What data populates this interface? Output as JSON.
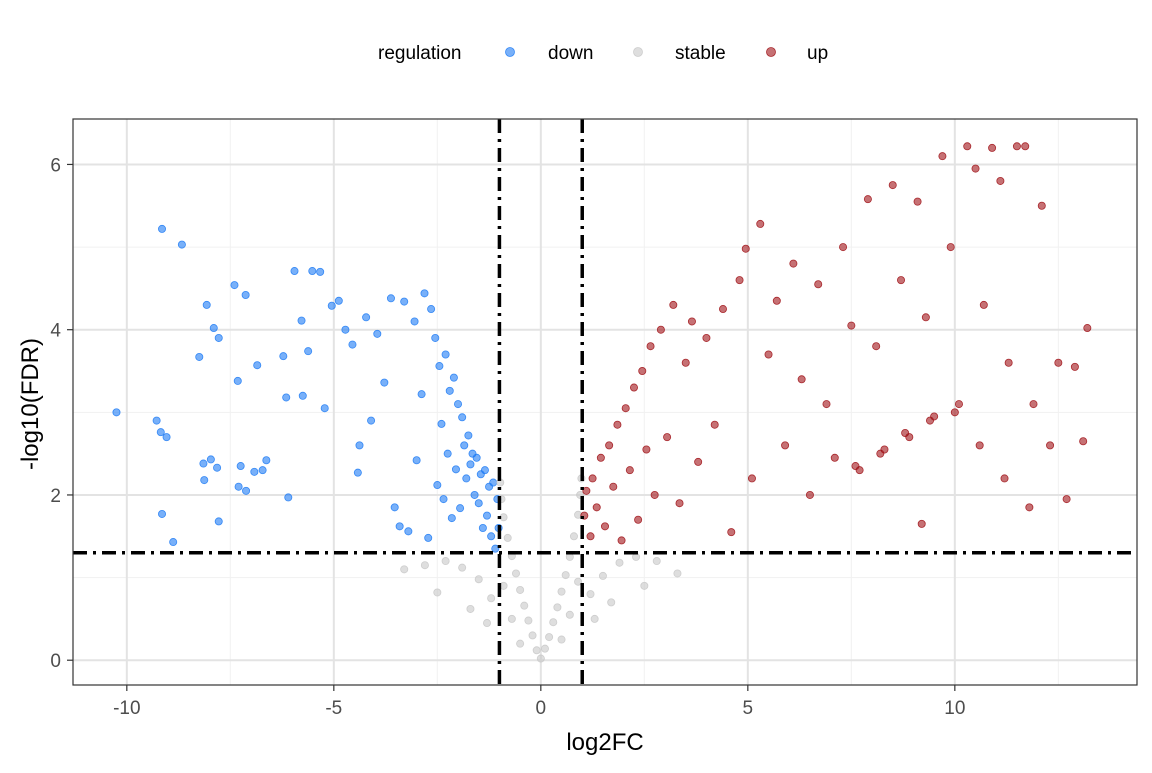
{
  "chart_data": {
    "type": "scatter",
    "xlabel": "log2FC",
    "ylabel": "-log10(FDR)",
    "xlim": [
      -11.3,
      14.4
    ],
    "ylim": [
      -0.3,
      6.55
    ],
    "x_ticks": [
      -10,
      -5,
      0,
      5,
      10
    ],
    "y_ticks": [
      0,
      2,
      4,
      6
    ],
    "x_tick_labels": [
      "-10",
      "-5",
      "0",
      "5",
      "10"
    ],
    "y_tick_labels": [
      "0",
      "2",
      "4",
      "6"
    ],
    "grid": true,
    "legend_position": "top",
    "legend": {
      "title": "regulation",
      "entries": [
        {
          "label": "down",
          "color": "#1E7BF5"
        },
        {
          "label": "stable",
          "color": "#C8C8C8"
        },
        {
          "label": "up",
          "color": "#A01218"
        }
      ]
    },
    "thresholds": {
      "log2FC": [
        -1,
        1
      ],
      "neg_log10_FDR": 1.3
    },
    "series": [
      {
        "name": "down",
        "color": "#1E7BF5",
        "points": [
          [
            -10.25,
            3.0
          ],
          [
            -9.28,
            2.9
          ],
          [
            -9.18,
            2.76
          ],
          [
            -9.04,
            2.7
          ],
          [
            -9.15,
            1.77
          ],
          [
            -8.88,
            1.43
          ],
          [
            -9.15,
            5.22
          ],
          [
            -8.67,
            5.03
          ],
          [
            -8.25,
            3.67
          ],
          [
            -8.07,
            4.3
          ],
          [
            -7.9,
            4.02
          ],
          [
            -7.78,
            3.9
          ],
          [
            -8.15,
            2.38
          ],
          [
            -8.13,
            2.18
          ],
          [
            -7.97,
            2.43
          ],
          [
            -7.82,
            2.33
          ],
          [
            -7.78,
            1.68
          ],
          [
            -7.4,
            4.54
          ],
          [
            -7.32,
            3.38
          ],
          [
            -7.13,
            4.42
          ],
          [
            -7.3,
            2.1
          ],
          [
            -7.25,
            2.35
          ],
          [
            -7.12,
            2.05
          ],
          [
            -6.92,
            2.28
          ],
          [
            -6.85,
            3.57
          ],
          [
            -6.72,
            2.3
          ],
          [
            -6.63,
            2.42
          ],
          [
            -6.22,
            3.68
          ],
          [
            -6.15,
            3.18
          ],
          [
            -6.1,
            1.97
          ],
          [
            -5.95,
            4.71
          ],
          [
            -5.78,
            4.11
          ],
          [
            -5.75,
            3.2
          ],
          [
            -5.62,
            3.74
          ],
          [
            -5.52,
            4.71
          ],
          [
            -5.33,
            4.7
          ],
          [
            -5.22,
            3.05
          ],
          [
            -5.05,
            4.29
          ],
          [
            -4.88,
            4.35
          ],
          [
            -4.72,
            4.0
          ],
          [
            -4.55,
            3.82
          ],
          [
            -4.42,
            2.27
          ],
          [
            -4.38,
            2.6
          ],
          [
            -4.22,
            4.15
          ],
          [
            -4.1,
            2.9
          ],
          [
            -3.95,
            3.95
          ],
          [
            -3.78,
            3.36
          ],
          [
            -3.62,
            4.38
          ],
          [
            -3.53,
            1.85
          ],
          [
            -3.41,
            1.62
          ],
          [
            -3.3,
            4.34
          ],
          [
            -3.2,
            1.56
          ],
          [
            -3.05,
            4.1
          ],
          [
            -3.0,
            2.42
          ],
          [
            -2.88,
            3.22
          ],
          [
            -2.81,
            4.44
          ],
          [
            -2.72,
            1.48
          ],
          [
            -2.65,
            4.25
          ],
          [
            -2.55,
            3.9
          ],
          [
            -2.5,
            2.12
          ],
          [
            -2.45,
            3.56
          ],
          [
            -2.4,
            2.86
          ],
          [
            -2.35,
            1.95
          ],
          [
            -2.3,
            3.7
          ],
          [
            -2.25,
            2.5
          ],
          [
            -2.2,
            3.26
          ],
          [
            -2.15,
            1.72
          ],
          [
            -2.1,
            3.42
          ],
          [
            -2.05,
            2.31
          ],
          [
            -2.0,
            3.1
          ],
          [
            -1.95,
            1.84
          ],
          [
            -1.9,
            2.94
          ],
          [
            -1.85,
            2.6
          ],
          [
            -1.8,
            2.2
          ],
          [
            -1.75,
            2.72
          ],
          [
            -1.7,
            2.37
          ],
          [
            -1.65,
            2.5
          ],
          [
            -1.6,
            2.0
          ],
          [
            -1.55,
            2.45
          ],
          [
            -1.5,
            1.9
          ],
          [
            -1.45,
            2.25
          ],
          [
            -1.4,
            1.6
          ],
          [
            -1.35,
            2.3
          ],
          [
            -1.3,
            1.75
          ],
          [
            -1.25,
            2.1
          ],
          [
            -1.2,
            1.5
          ],
          [
            -1.15,
            2.15
          ],
          [
            -1.1,
            1.35
          ],
          [
            -1.05,
            1.95
          ],
          [
            -1.02,
            1.6
          ]
        ]
      },
      {
        "name": "stable",
        "color": "#C8C8C8",
        "points": [
          [
            0.0,
            0.02
          ],
          [
            -0.1,
            0.12
          ],
          [
            0.1,
            0.14
          ],
          [
            -0.2,
            0.3
          ],
          [
            0.2,
            0.28
          ],
          [
            -0.3,
            0.48
          ],
          [
            0.3,
            0.46
          ],
          [
            -0.4,
            0.66
          ],
          [
            0.4,
            0.64
          ],
          [
            -0.5,
            0.85
          ],
          [
            0.5,
            0.83
          ],
          [
            -0.6,
            1.05
          ],
          [
            0.6,
            1.03
          ],
          [
            -0.7,
            1.26
          ],
          [
            0.7,
            1.25
          ],
          [
            -0.8,
            1.48
          ],
          [
            0.8,
            1.5
          ],
          [
            -0.9,
            1.73
          ],
          [
            0.9,
            1.76
          ],
          [
            -0.95,
            1.95
          ],
          [
            0.95,
            2.0
          ],
          [
            -0.98,
            2.15
          ],
          [
            0.98,
            2.2
          ],
          [
            -0.5,
            0.2
          ],
          [
            0.5,
            0.25
          ],
          [
            -0.7,
            0.5
          ],
          [
            0.7,
            0.55
          ],
          [
            -0.9,
            0.9
          ],
          [
            0.9,
            0.95
          ],
          [
            -1.2,
            0.75
          ],
          [
            1.2,
            0.8
          ],
          [
            -1.5,
            0.98
          ],
          [
            1.5,
            1.02
          ],
          [
            -1.9,
            1.12
          ],
          [
            1.9,
            1.18
          ],
          [
            -2.3,
            1.2
          ],
          [
            2.3,
            1.25
          ],
          [
            -2.8,
            1.15
          ],
          [
            2.8,
            1.2
          ],
          [
            -3.3,
            1.1
          ],
          [
            3.3,
            1.05
          ],
          [
            -1.3,
            0.45
          ],
          [
            1.3,
            0.5
          ],
          [
            -1.7,
            0.62
          ],
          [
            1.7,
            0.7
          ],
          [
            -2.5,
            0.82
          ],
          [
            2.5,
            0.9
          ]
        ]
      },
      {
        "name": "up",
        "color": "#A01218",
        "points": [
          [
            1.05,
            1.75
          ],
          [
            1.1,
            2.05
          ],
          [
            1.2,
            1.5
          ],
          [
            1.25,
            2.2
          ],
          [
            1.35,
            1.85
          ],
          [
            1.45,
            2.45
          ],
          [
            1.55,
            1.62
          ],
          [
            1.65,
            2.6
          ],
          [
            1.75,
            2.1
          ],
          [
            1.85,
            2.85
          ],
          [
            1.95,
            1.45
          ],
          [
            2.05,
            3.05
          ],
          [
            2.15,
            2.3
          ],
          [
            2.25,
            3.3
          ],
          [
            2.35,
            1.7
          ],
          [
            2.45,
            3.5
          ],
          [
            2.55,
            2.55
          ],
          [
            2.65,
            3.8
          ],
          [
            2.75,
            2.0
          ],
          [
            2.9,
            4.0
          ],
          [
            3.05,
            2.7
          ],
          [
            3.2,
            4.3
          ],
          [
            3.35,
            1.9
          ],
          [
            3.5,
            3.6
          ],
          [
            3.65,
            4.1
          ],
          [
            3.8,
            2.4
          ],
          [
            4.0,
            3.9
          ],
          [
            4.2,
            2.85
          ],
          [
            4.4,
            4.25
          ],
          [
            4.6,
            1.55
          ],
          [
            4.8,
            4.6
          ],
          [
            4.95,
            4.98
          ],
          [
            5.1,
            2.2
          ],
          [
            5.3,
            5.28
          ],
          [
            5.5,
            3.7
          ],
          [
            5.7,
            4.35
          ],
          [
            5.9,
            2.6
          ],
          [
            6.1,
            4.8
          ],
          [
            6.3,
            3.4
          ],
          [
            6.5,
            2.0
          ],
          [
            6.7,
            4.55
          ],
          [
            6.9,
            3.1
          ],
          [
            7.1,
            2.45
          ],
          [
            7.3,
            5.0
          ],
          [
            7.5,
            4.05
          ],
          [
            7.7,
            2.3
          ],
          [
            7.9,
            5.58
          ],
          [
            8.1,
            3.8
          ],
          [
            8.3,
            2.55
          ],
          [
            8.5,
            5.75
          ],
          [
            8.7,
            4.6
          ],
          [
            8.9,
            2.7
          ],
          [
            9.1,
            5.55
          ],
          [
            9.3,
            4.15
          ],
          [
            9.5,
            2.95
          ],
          [
            9.7,
            6.1
          ],
          [
            9.9,
            5.0
          ],
          [
            10.1,
            3.1
          ],
          [
            10.3,
            6.22
          ],
          [
            10.5,
            5.95
          ],
          [
            10.7,
            4.3
          ],
          [
            10.9,
            6.2
          ],
          [
            11.1,
            5.8
          ],
          [
            11.3,
            3.6
          ],
          [
            11.5,
            6.22
          ],
          [
            11.7,
            6.22
          ],
          [
            11.9,
            3.1
          ],
          [
            12.1,
            5.5
          ],
          [
            12.3,
            2.6
          ],
          [
            12.5,
            3.6
          ],
          [
            12.7,
            1.95
          ],
          [
            12.9,
            3.55
          ],
          [
            13.1,
            2.65
          ],
          [
            13.2,
            4.02
          ],
          [
            7.6,
            2.35
          ],
          [
            8.2,
            2.5
          ],
          [
            8.8,
            2.75
          ],
          [
            9.4,
            2.9
          ],
          [
            10.0,
            3.0
          ],
          [
            10.6,
            2.6
          ],
          [
            11.2,
            2.2
          ],
          [
            9.2,
            1.65
          ],
          [
            11.8,
            1.85
          ]
        ]
      }
    ]
  }
}
